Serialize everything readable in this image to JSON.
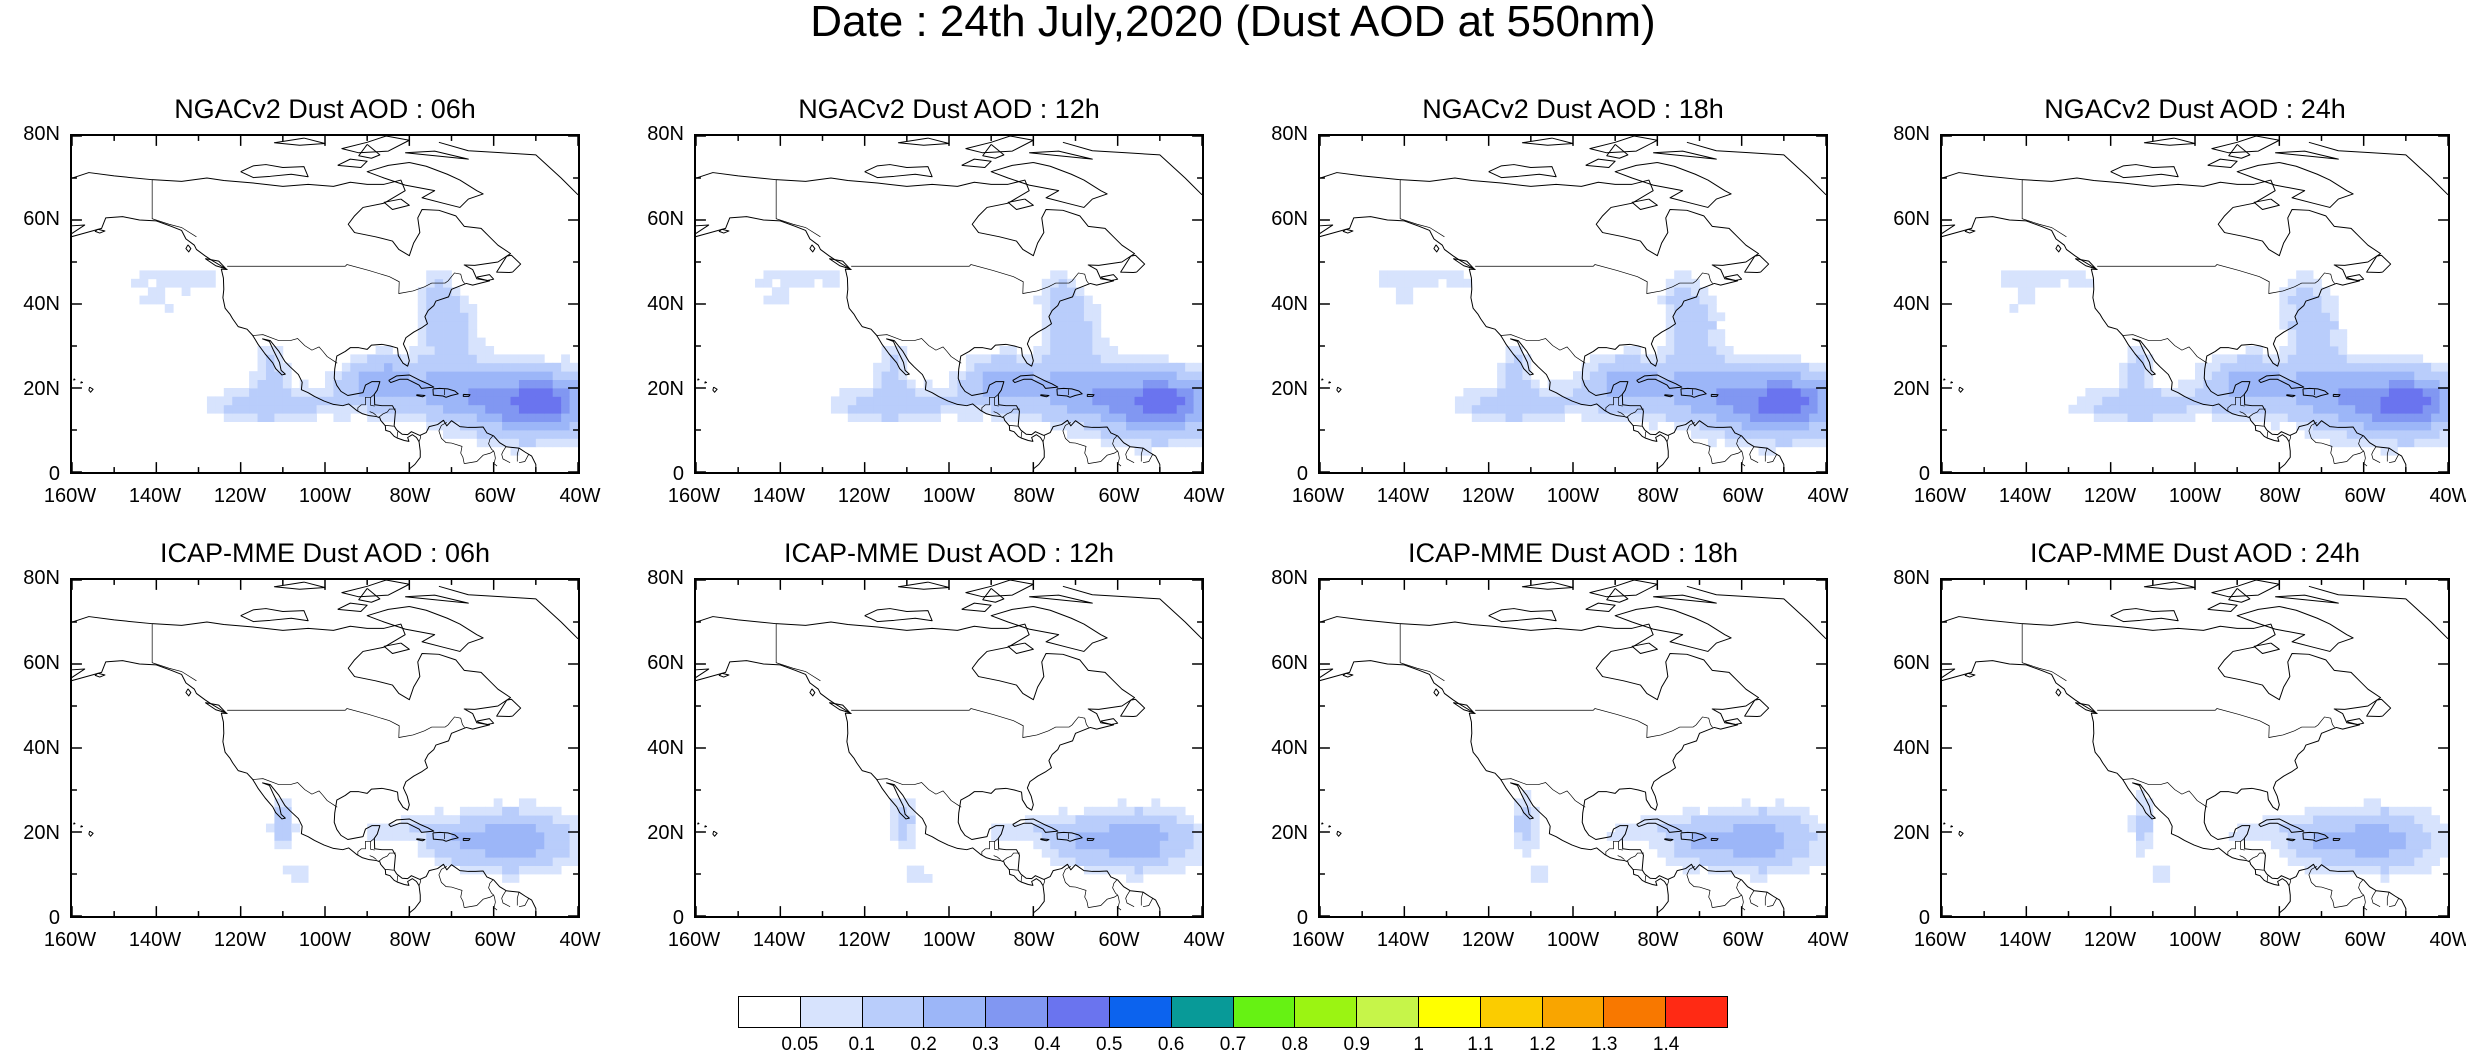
{
  "title": "Date : 24th July,2020 (Dust AOD at 550nm)",
  "panels": [
    {
      "title": "NGACv2 Dust AOD : 06h",
      "model": "NGAC",
      "hour": 6
    },
    {
      "title": "NGACv2 Dust AOD : 12h",
      "model": "NGAC",
      "hour": 12
    },
    {
      "title": "NGACv2 Dust AOD : 18h",
      "model": "NGAC",
      "hour": 18
    },
    {
      "title": "NGACv2 Dust AOD : 24h",
      "model": "NGAC",
      "hour": 24
    },
    {
      "title": "ICAP-MME Dust AOD : 06h",
      "model": "ICAP",
      "hour": 6
    },
    {
      "title": "ICAP-MME Dust AOD : 12h",
      "model": "ICAP",
      "hour": 12
    },
    {
      "title": "ICAP-MME Dust AOD : 18h",
      "model": "ICAP",
      "hour": 18
    },
    {
      "title": "ICAP-MME Dust AOD : 24h",
      "model": "ICAP",
      "hour": 24
    }
  ],
  "lat_ticks": [
    "80N",
    "60N",
    "40N",
    "20N",
    "0"
  ],
  "lon_ticks": [
    "160W",
    "140W",
    "120W",
    "100W",
    "80W",
    "60W",
    "40W"
  ],
  "colorbar": {
    "colors": [
      "#ffffff",
      "#d7e3fd",
      "#b9cdfb",
      "#9cb6f8",
      "#8197f2",
      "#6a74ef",
      "#0c63ee",
      "#089a98",
      "#66f213",
      "#9bf412",
      "#c6f549",
      "#ffff00",
      "#fbcc00",
      "#f9a500",
      "#f87800",
      "#ff2a14"
    ],
    "labels": [
      "0.05",
      "0.1",
      "0.2",
      "0.3",
      "0.4",
      "0.5",
      "0.6",
      "0.7",
      "0.8",
      "0.9",
      "1",
      "1.1",
      "1.2",
      "1.3",
      "1.4"
    ]
  }
}
